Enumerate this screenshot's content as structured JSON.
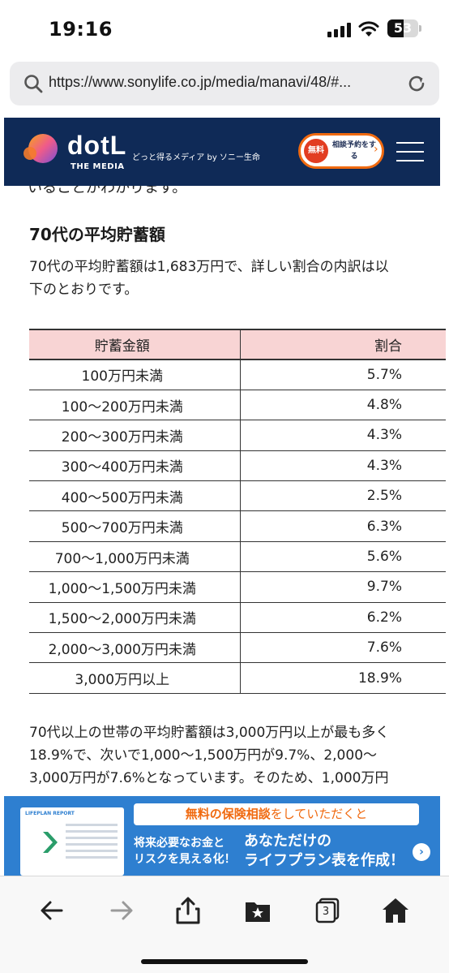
{
  "status_bar": {
    "time": "19:16",
    "battery": "53",
    "battery_level": 0.53
  },
  "browser": {
    "url": "https://www.sonylife.co.jp/media/manavi/48/#..."
  },
  "site_header": {
    "logo": "dotL",
    "logo_sub": "THE MEDIA",
    "tagline": "どっと得るメディア by ソニー生命",
    "consult_free": "無料",
    "consult_label": "相談予約をする",
    "colors": {
      "navy": "#0f2a57",
      "orange": "#f06a10"
    }
  },
  "article": {
    "cut_line": "いることがわかります。",
    "heading": "70代の平均貯蓄額",
    "para1_lines": [
      "70代の平均貯蓄額は1,683万円で、詳しい割合の内訳は以",
      "下のとおりです。"
    ],
    "table": {
      "headers": [
        "貯蓄金額",
        "割合"
      ],
      "rows": [
        [
          "100万円未満",
          "5.7%"
        ],
        [
          "100～200万円未満",
          "4.8%"
        ],
        [
          "200～300万円未満",
          "4.3%"
        ],
        [
          "300～400万円未満",
          "4.3%"
        ],
        [
          "400～500万円未満",
          "2.5%"
        ],
        [
          "500～700万円未満",
          "6.3%"
        ],
        [
          "700～1,000万円未満",
          "5.6%"
        ],
        [
          "1,000～1,500万円未満",
          "9.7%"
        ],
        [
          "1,500～2,000万円未満",
          "6.2%"
        ],
        [
          "2,000～3,000万円未満",
          "7.6%"
        ],
        [
          "3,000万円以上",
          "18.9%"
        ]
      ]
    },
    "para2_lines": [
      "70代以上の世帯の平均貯蓄額は3,000万円以上が最も多く",
      "18.9%で、次いで1,000～1,500万円が9.7%、2,000～",
      "3,000万円が7.6%となっています。そのため、1,000万円"
    ]
  },
  "banner": {
    "doc_brand": "LIFEPLAN REPORT",
    "pill_highlight": "無料の保険相談",
    "pill_rest": "をしていただくと",
    "left_lines": [
      "将来必要なお金と",
      "リスクを見える化！"
    ],
    "right_lines": [
      "あなただけの",
      "ライフプラン表を作成！"
    ]
  },
  "toolbar": {
    "tabs_count": "3",
    "icons": [
      "back-icon",
      "forward-icon",
      "share-icon",
      "bookmarks-icon",
      "tabs-icon",
      "home-icon"
    ]
  }
}
